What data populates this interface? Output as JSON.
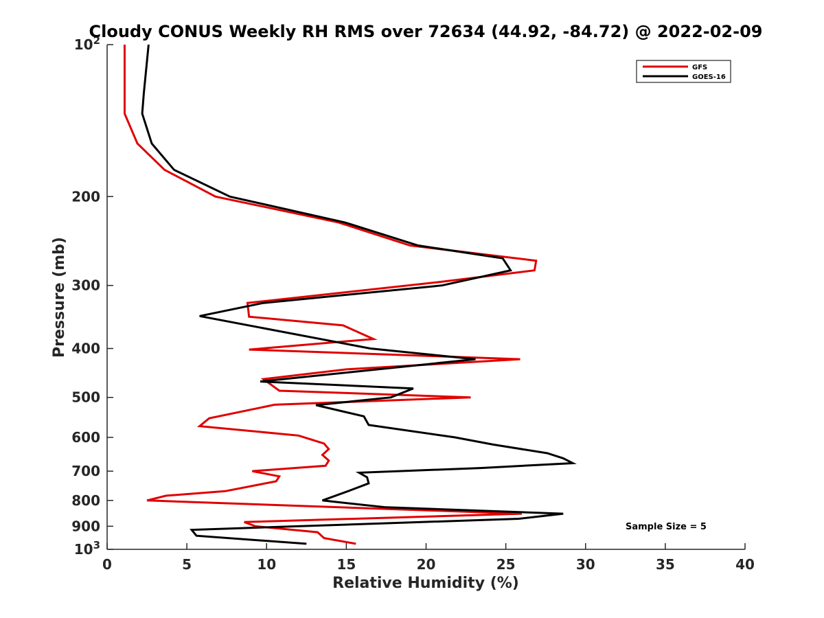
{
  "chart_data": {
    "type": "line",
    "title": "Cloudy CONUS Weekly RH RMS over 72634 (44.92, -84.72) @ 2022-02-09",
    "xlabel": "Relative Humidity (%)",
    "ylabel": "Pressure (mb)",
    "xlim": [
      0,
      40
    ],
    "ylim": [
      100,
      1000
    ],
    "y_scale": "log",
    "y_reversed": true,
    "grid": false,
    "legend_position": "top-right",
    "x_ticks": [
      "0",
      "5",
      "10",
      "15",
      "20",
      "25",
      "30",
      "35",
      "40"
    ],
    "y_ticks": [
      {
        "value": 100,
        "base": "10",
        "exp": "2"
      },
      {
        "value": 200,
        "label": "200"
      },
      {
        "value": 300,
        "label": "300"
      },
      {
        "value": 400,
        "label": "400"
      },
      {
        "value": 500,
        "label": "500"
      },
      {
        "value": 600,
        "label": "600"
      },
      {
        "value": 700,
        "label": "700"
      },
      {
        "value": 800,
        "label": "800"
      },
      {
        "value": 900,
        "label": "900"
      },
      {
        "value": 1000,
        "base": "10",
        "exp": "3"
      }
    ],
    "annotation": "Sample Size = 5",
    "series": [
      {
        "name": "GFS",
        "color": "#e00000",
        "points": [
          {
            "x": 1.1,
            "p": 100
          },
          {
            "x": 1.1,
            "p": 125
          },
          {
            "x": 1.1,
            "p": 137
          },
          {
            "x": 1.9,
            "p": 157
          },
          {
            "x": 3.6,
            "p": 177
          },
          {
            "x": 6.8,
            "p": 200
          },
          {
            "x": 14.5,
            "p": 225
          },
          {
            "x": 19.0,
            "p": 250
          },
          {
            "x": 26.9,
            "p": 268
          },
          {
            "x": 26.8,
            "p": 280
          },
          {
            "x": 21.0,
            "p": 295
          },
          {
            "x": 8.8,
            "p": 325
          },
          {
            "x": 8.9,
            "p": 346
          },
          {
            "x": 14.8,
            "p": 360
          },
          {
            "x": 16.7,
            "p": 383
          },
          {
            "x": 8.9,
            "p": 402
          },
          {
            "x": 25.9,
            "p": 420
          },
          {
            "x": 15.0,
            "p": 440
          },
          {
            "x": 9.8,
            "p": 460
          },
          {
            "x": 10.8,
            "p": 485
          },
          {
            "x": 22.8,
            "p": 500
          },
          {
            "x": 10.5,
            "p": 517
          },
          {
            "x": 6.4,
            "p": 550
          },
          {
            "x": 5.8,
            "p": 570
          },
          {
            "x": 12.0,
            "p": 595
          },
          {
            "x": 13.6,
            "p": 617
          },
          {
            "x": 13.9,
            "p": 633
          },
          {
            "x": 13.5,
            "p": 650
          },
          {
            "x": 13.9,
            "p": 667
          },
          {
            "x": 13.7,
            "p": 683
          },
          {
            "x": 9.1,
            "p": 700
          },
          {
            "x": 10.8,
            "p": 717
          },
          {
            "x": 10.6,
            "p": 733
          },
          {
            "x": 7.4,
            "p": 767
          },
          {
            "x": 3.7,
            "p": 783
          },
          {
            "x": 2.5,
            "p": 800
          },
          {
            "x": 26.0,
            "p": 850
          },
          {
            "x": 8.6,
            "p": 883
          },
          {
            "x": 9.3,
            "p": 900
          },
          {
            "x": 13.2,
            "p": 925
          },
          {
            "x": 13.6,
            "p": 950
          },
          {
            "x": 15.6,
            "p": 975
          }
        ]
      },
      {
        "name": "GOES-16",
        "color": "#000000",
        "points": [
          {
            "x": 2.6,
            "p": 100
          },
          {
            "x": 2.3,
            "p": 125
          },
          {
            "x": 2.2,
            "p": 137
          },
          {
            "x": 2.8,
            "p": 157
          },
          {
            "x": 4.2,
            "p": 177
          },
          {
            "x": 7.7,
            "p": 200
          },
          {
            "x": 14.9,
            "p": 225
          },
          {
            "x": 19.5,
            "p": 250
          },
          {
            "x": 24.8,
            "p": 265
          },
          {
            "x": 25.3,
            "p": 280
          },
          {
            "x": 21.0,
            "p": 300
          },
          {
            "x": 9.8,
            "p": 325
          },
          {
            "x": 5.8,
            "p": 345
          },
          {
            "x": 16.5,
            "p": 400
          },
          {
            "x": 23.1,
            "p": 420
          },
          {
            "x": 9.6,
            "p": 465
          },
          {
            "x": 19.2,
            "p": 480
          },
          {
            "x": 17.8,
            "p": 500
          },
          {
            "x": 13.1,
            "p": 518
          },
          {
            "x": 16.1,
            "p": 545
          },
          {
            "x": 16.4,
            "p": 567
          },
          {
            "x": 21.8,
            "p": 600
          },
          {
            "x": 24.2,
            "p": 620
          },
          {
            "x": 27.6,
            "p": 645
          },
          {
            "x": 28.6,
            "p": 660
          },
          {
            "x": 29.2,
            "p": 675
          },
          {
            "x": 23.4,
            "p": 690
          },
          {
            "x": 15.8,
            "p": 705
          },
          {
            "x": 16.3,
            "p": 720
          },
          {
            "x": 16.4,
            "p": 740
          },
          {
            "x": 15.2,
            "p": 765
          },
          {
            "x": 13.5,
            "p": 800
          },
          {
            "x": 17.4,
            "p": 825
          },
          {
            "x": 28.6,
            "p": 850
          },
          {
            "x": 25.8,
            "p": 870
          },
          {
            "x": 5.3,
            "p": 915
          },
          {
            "x": 5.6,
            "p": 940
          },
          {
            "x": 12.5,
            "p": 975
          }
        ]
      }
    ]
  }
}
